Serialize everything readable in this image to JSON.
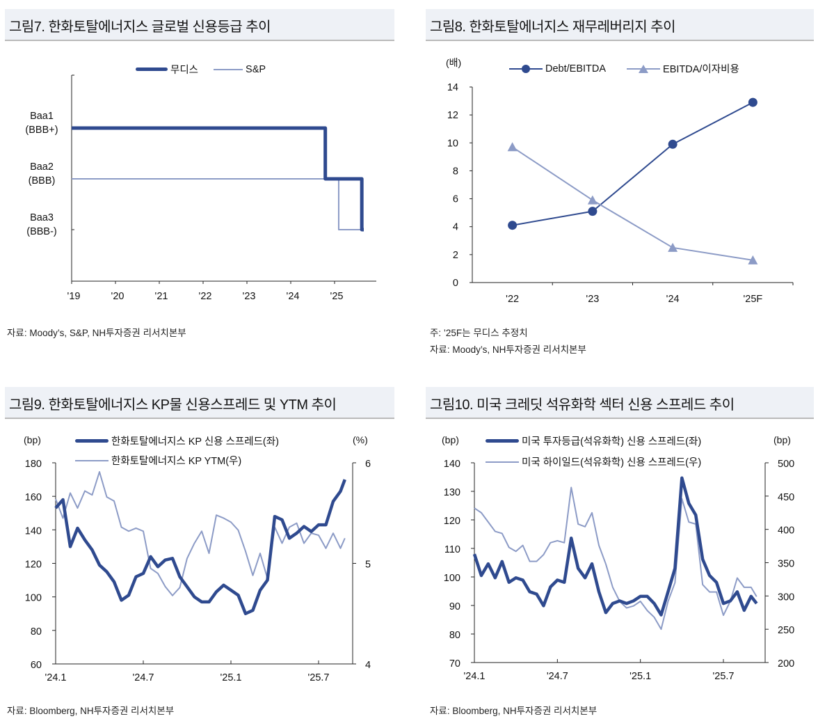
{
  "colors": {
    "dark": "#2f4a8f",
    "light": "#8c9bc6",
    "title_bg": "#eef1f6"
  },
  "figures": [
    {
      "title": "그림7. 한화토탈에너지스 글로벌 신용등급 추이",
      "source": "자료: Moody’s, S&P, NH투자증권 리서치본부"
    },
    {
      "title": "그림8. 한화토탈에너지스 재무레버리지 추이",
      "note": "주: ’25F는 무디스 추정치",
      "source": "자료: Moody’s, NH투자증권 리서치본부"
    },
    {
      "title": "그림9. 한화토탈에너지스 KP물 신용스프레드 및 YTM 추이",
      "source": "자료: Bloomberg, NH투자증권 리서치본부"
    },
    {
      "title": "그림10. 미국 크레딧 석유화학 섹터 신용 스프레드 추이",
      "source": "자료: Bloomberg, NH투자증권 리서치본부"
    }
  ],
  "chart_data": [
    {
      "type": "line",
      "step": true,
      "levels": [
        {
          "moodys": "Baa1",
          "sp": "BBB+",
          "label1": "Baa1",
          "label2": "(BBB+)"
        },
        {
          "moodys": "Baa2",
          "sp": "BBB",
          "label1": "Baa2",
          "label2": "(BBB)"
        },
        {
          "moodys": "Baa3",
          "sp": "BBB-",
          "label1": "Baa3",
          "label2": "(BBB-)"
        }
      ],
      "x_ticks": [
        "'19",
        "'20",
        "'21",
        "'22",
        "'23",
        "'24",
        "'25"
      ],
      "series": [
        {
          "name": "무디스",
          "style": "thick-dark",
          "points": [
            {
              "date": "2019-01-01",
              "rating": "Baa1"
            },
            {
              "date": "2024-10-15",
              "rating": "Baa2"
            },
            {
              "date": "2025-08-15",
              "rating": "Baa3"
            },
            {
              "date": "2025-09-01",
              "rating": "Baa3"
            }
          ]
        },
        {
          "name": "S&P",
          "style": "thin-light",
          "points": [
            {
              "date": "2019-01-01",
              "rating": "BBB"
            },
            {
              "date": "2025-02-05",
              "rating": "BBB-"
            },
            {
              "date": "2025-09-01",
              "rating": "BBB-"
            }
          ]
        }
      ],
      "legend_position": "top-center"
    },
    {
      "type": "line",
      "ylabel": "(배)",
      "categories": [
        "'22",
        "'23",
        "'24",
        "'25F"
      ],
      "ylim": [
        0,
        14
      ],
      "y_ticks": [
        0,
        2,
        4,
        6,
        8,
        10,
        12,
        14
      ],
      "series": [
        {
          "name": "Debt/EBITDA",
          "marker": "circle",
          "values": [
            4.1,
            5.1,
            9.9,
            12.9
          ]
        },
        {
          "name": "EBITDA/이자비용",
          "marker": "triangle",
          "values": [
            9.7,
            5.9,
            2.5,
            1.6
          ]
        }
      ],
      "legend_position": "top"
    },
    {
      "type": "line",
      "ylabel_left": "(bp)",
      "ylabel_right": "(%)",
      "ylim_left": [
        60,
        180
      ],
      "y_ticks_left": [
        60,
        80,
        100,
        120,
        140,
        160,
        180
      ],
      "ylim_right": [
        4,
        6
      ],
      "y_ticks_right": [
        4,
        5,
        6
      ],
      "x_ticks": [
        {
          "label": "'24.1",
          "date": "2024-01-01"
        },
        {
          "label": "'24.7",
          "date": "2024-07-01"
        },
        {
          "label": "'25.1",
          "date": "2025-01-01"
        },
        {
          "label": "'25.7",
          "date": "2025-07-01"
        }
      ],
      "x": [
        "2024-01-01",
        "2024-01-16",
        "2024-02-01",
        "2024-02-16",
        "2024-03-01",
        "2024-03-16",
        "2024-04-01",
        "2024-04-16",
        "2024-05-01",
        "2024-05-16",
        "2024-06-01",
        "2024-06-16",
        "2024-07-01",
        "2024-07-16",
        "2024-08-01",
        "2024-08-16",
        "2024-09-01",
        "2024-09-16",
        "2024-10-01",
        "2024-10-16",
        "2024-11-01",
        "2024-11-16",
        "2024-12-01",
        "2024-12-16",
        "2025-01-01",
        "2025-01-16",
        "2025-02-01",
        "2025-02-16",
        "2025-03-01",
        "2025-03-16",
        "2025-04-01",
        "2025-04-16",
        "2025-05-01",
        "2025-05-16",
        "2025-06-01",
        "2025-06-16",
        "2025-07-01",
        "2025-07-16",
        "2025-08-01",
        "2025-08-16",
        "2025-08-25"
      ],
      "series": [
        {
          "name": "한화토탈에너지스 KP 신용 스프레드(좌)",
          "axis": "left",
          "values": [
            153,
            158,
            130,
            141,
            134,
            128,
            119,
            115,
            109,
            98,
            101,
            112,
            114,
            124,
            118,
            122,
            123,
            112,
            106,
            100,
            97,
            97,
            103,
            107,
            104,
            101,
            90,
            92,
            104,
            110,
            148,
            146,
            135,
            138,
            142,
            139,
            143,
            143,
            157,
            163,
            170
          ]
        },
        {
          "name": "한화토탈에너지스 KP YTM(우)",
          "axis": "right",
          "values": [
            5.64,
            5.45,
            5.7,
            5.55,
            5.72,
            5.68,
            5.91,
            5.66,
            5.62,
            5.36,
            5.32,
            5.35,
            5.32,
            4.95,
            4.9,
            4.77,
            4.68,
            4.76,
            5.05,
            5.2,
            5.32,
            5.1,
            5.48,
            5.45,
            5.41,
            5.33,
            5.12,
            4.88,
            5.1,
            4.85,
            5.36,
            5.2,
            5.36,
            5.4,
            5.2,
            5.3,
            5.28,
            5.15,
            5.3,
            5.15,
            5.25
          ]
        }
      ],
      "legend_position": "top"
    },
    {
      "type": "line",
      "ylabel_left": "(bp)",
      "ylabel_right": "(bp)",
      "ylim_left": [
        70,
        140
      ],
      "y_ticks_left": [
        70,
        80,
        90,
        100,
        110,
        120,
        130,
        140
      ],
      "ylim_right": [
        200,
        500
      ],
      "y_ticks_right": [
        200,
        250,
        300,
        350,
        400,
        450,
        500
      ],
      "x_ticks": [
        {
          "label": "'24.1",
          "date": "2024-01-01"
        },
        {
          "label": "'24.7",
          "date": "2024-07-01"
        },
        {
          "label": "'25.1",
          "date": "2025-01-01"
        },
        {
          "label": "'25.7",
          "date": "2025-07-01"
        }
      ],
      "x": [
        "2024-01-01",
        "2024-01-16",
        "2024-02-01",
        "2024-02-16",
        "2024-03-01",
        "2024-03-16",
        "2024-04-01",
        "2024-04-16",
        "2024-05-01",
        "2024-05-16",
        "2024-06-01",
        "2024-06-16",
        "2024-07-01",
        "2024-07-16",
        "2024-08-01",
        "2024-08-16",
        "2024-09-01",
        "2024-09-16",
        "2024-10-01",
        "2024-10-16",
        "2024-11-01",
        "2024-11-16",
        "2024-12-01",
        "2024-12-16",
        "2025-01-01",
        "2025-01-16",
        "2025-02-01",
        "2025-02-16",
        "2025-03-01",
        "2025-03-16",
        "2025-04-01",
        "2025-04-16",
        "2025-05-01",
        "2025-05-16",
        "2025-06-01",
        "2025-06-16",
        "2025-07-01",
        "2025-07-16",
        "2025-08-01",
        "2025-08-16",
        "2025-09-01",
        "2025-09-13"
      ],
      "series": [
        {
          "name": "미국 투자등급(석유화학) 신용 스프레드(좌)",
          "axis": "left",
          "values": [
            108,
            100.5,
            104.6,
            99.7,
            105.4,
            98.1,
            99.7,
            98.9,
            94.8,
            94,
            89.9,
            96.5,
            98.9,
            98.1,
            113.6,
            103,
            99.7,
            104.6,
            94.8,
            87.5,
            90.7,
            91.6,
            90.7,
            91.6,
            93.2,
            93.2,
            90.7,
            86.7,
            94.8,
            103,
            134.7,
            125.8,
            121.7,
            106.2,
            100.5,
            98.1,
            90.7,
            91.6,
            94.8,
            88.3,
            93.2,
            90.7
          ]
        },
        {
          "name": "미국 하이일드(석유화학) 신용 스프레드(우)",
          "axis": "right",
          "values": [
            432,
            425,
            411,
            397,
            394,
            373,
            367,
            376,
            352,
            352,
            362,
            380,
            383,
            380,
            463,
            408,
            404,
            425,
            376,
            348,
            313,
            292,
            282,
            285,
            292,
            278,
            268,
            250,
            292,
            320,
            446,
            411,
            408,
            317,
            306,
            306,
            271,
            292,
            327,
            313,
            313,
            299
          ]
        }
      ],
      "legend_position": "top"
    }
  ]
}
